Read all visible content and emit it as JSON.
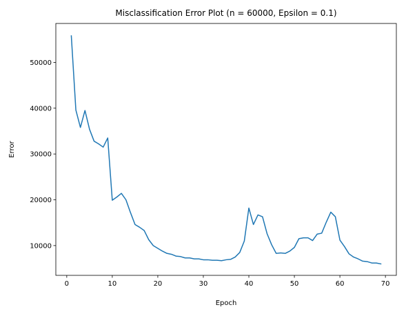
{
  "chart_data": {
    "type": "line",
    "title": "Misclassification Error Plot (n = 60000, Epsilon = 0.1)",
    "xlabel": "Epoch",
    "ylabel": "Error",
    "xlim": [
      -2.4,
      72.4
    ],
    "ylim": [
      3500,
      58500
    ],
    "xticks": [
      0,
      10,
      20,
      30,
      40,
      50,
      60,
      70
    ],
    "yticks": [
      10000,
      20000,
      30000,
      40000,
      50000
    ],
    "grid": false,
    "legend": "none",
    "series": [
      {
        "color": "#1f77b4",
        "x": [
          1,
          2,
          3,
          4,
          5,
          6,
          7,
          8,
          9,
          10,
          11,
          12,
          13,
          14,
          15,
          16,
          17,
          18,
          19,
          20,
          21,
          22,
          23,
          24,
          25,
          26,
          27,
          28,
          29,
          30,
          31,
          32,
          33,
          34,
          35,
          36,
          37,
          38,
          39,
          40,
          41,
          42,
          43,
          44,
          45,
          46,
          47,
          48,
          49,
          50,
          51,
          52,
          53,
          54,
          55,
          56,
          57,
          58,
          59,
          60,
          61,
          62,
          63,
          64,
          65,
          66,
          67,
          68,
          69
        ],
        "y": [
          55800,
          39600,
          35800,
          39500,
          35400,
          32800,
          32200,
          31500,
          33500,
          19900,
          20600,
          21400,
          20000,
          17200,
          14600,
          14000,
          13300,
          11300,
          10000,
          9400,
          8800,
          8300,
          8100,
          7700,
          7600,
          7300,
          7300,
          7100,
          7100,
          6900,
          6900,
          6800,
          6800,
          6700,
          6900,
          7000,
          7500,
          8500,
          11000,
          18200,
          14600,
          16700,
          16300,
          12600,
          10200,
          8300,
          8400,
          8300,
          8800,
          9600,
          11500,
          11700,
          11700,
          11100,
          12500,
          12700,
          15100,
          17300,
          16300,
          11200,
          9800,
          8200,
          7500,
          7100,
          6600,
          6500,
          6200,
          6200,
          6000
        ]
      }
    ]
  }
}
